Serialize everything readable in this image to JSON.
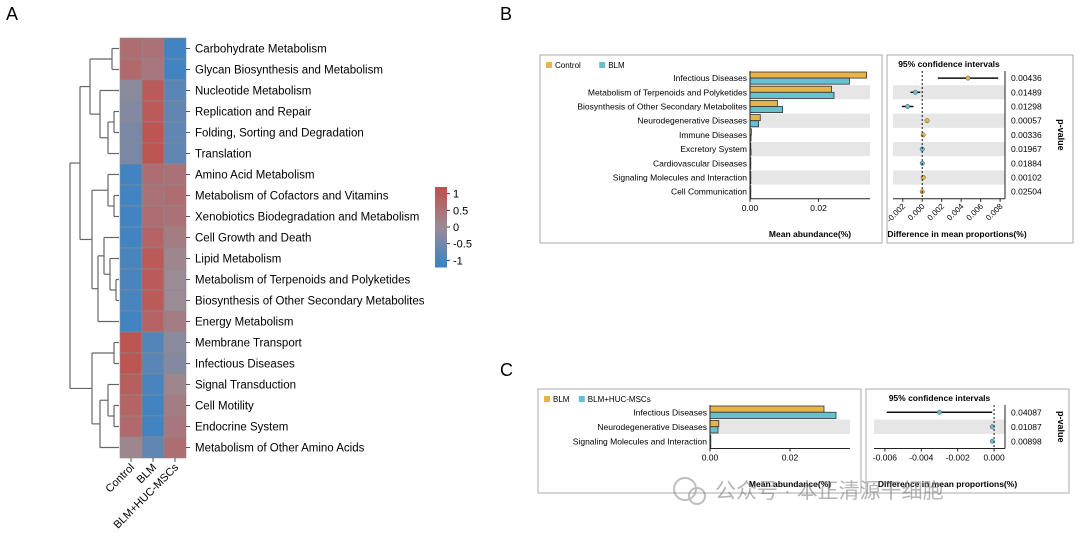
{
  "panel_labels": {
    "a": "A",
    "b": "B",
    "c": "C"
  },
  "watermark": "公众号 · 本正清源干细胞",
  "chart_data": [
    {
      "type": "heatmap",
      "panel": "A",
      "columns": [
        "Control",
        "BLM",
        "BLM+HUC-MSCs"
      ],
      "rows": [
        "Carbohydrate Metabolism",
        "Glycan Biosynthesis and Metabolism",
        "Nucleotide Metabolism",
        "Replication and Repair",
        "Folding, Sorting and Degradation",
        "Translation",
        "Amino Acid Metabolism",
        "Metabolism of Cofactors and Vitamins",
        "Xenobiotics Biodegradation and Metabolism",
        "Cell Growth and Death",
        "Lipid Metabolism",
        "Metabolism of Terpenoids and Polyketides",
        "Biosynthesis of Other Secondary Metabolites",
        "Energy Metabolism",
        "Membrane Transport",
        "Infectious Diseases",
        "Signal Transduction",
        "Cell Motility",
        "Endocrine System",
        "Metabolism of Other Amino Acids"
      ],
      "values": [
        [
          0.6,
          0.5,
          -1.1
        ],
        [
          0.7,
          0.4,
          -1.1
        ],
        [
          -0.2,
          1.0,
          -0.8
        ],
        [
          -0.3,
          1.0,
          -0.7
        ],
        [
          -0.4,
          1.1,
          -0.7
        ],
        [
          -0.4,
          1.1,
          -0.7
        ],
        [
          -1.1,
          0.6,
          0.5
        ],
        [
          -1.1,
          0.5,
          0.6
        ],
        [
          -1.1,
          0.6,
          0.5
        ],
        [
          -1.1,
          0.8,
          0.3
        ],
        [
          -1.0,
          1.0,
          0.1
        ],
        [
          -1.0,
          1.0,
          0.0
        ],
        [
          -1.0,
          1.0,
          0.0
        ],
        [
          -1.1,
          0.8,
          0.3
        ],
        [
          1.1,
          -0.9,
          -0.2
        ],
        [
          1.1,
          -0.8,
          -0.3
        ],
        [
          0.9,
          -1.0,
          0.1
        ],
        [
          0.8,
          -1.1,
          0.3
        ],
        [
          0.7,
          -1.1,
          0.4
        ],
        [
          0.1,
          -0.7,
          0.6
        ]
      ],
      "legend": {
        "ticks": [
          "1",
          "0.5",
          "0",
          "-0.5",
          "-1"
        ],
        "ticks_num": [
          1,
          0.5,
          0,
          -0.5,
          -1
        ]
      },
      "colors": {
        "high": "#c0504d",
        "mid": "#9b8b95",
        "low": "#3a83c6"
      }
    },
    {
      "type": "bar",
      "panel": "B",
      "series": [
        {
          "name": "Control",
          "color": "#e8b34a",
          "values": [
            0.034,
            0.0238,
            0.008,
            0.003,
            0.0004,
            0.0002,
            0.0002,
            0.0001,
            0.0001
          ]
        },
        {
          "name": "BLM",
          "color": "#68bfd0",
          "values": [
            0.029,
            0.0245,
            0.0095,
            0.0025,
            0.0003,
            0.0003,
            0.0002,
            0.0001,
            0.0001
          ]
        }
      ],
      "categories": [
        "Infectious Diseases",
        "Metabolism of Terpenoids and Polyketides",
        "Biosynthesis of Other Secondary Metabolites",
        "Neurodegenerative Diseases",
        "Immune Diseases",
        "Excretory System",
        "Cardiovascular Diseases",
        "Signaling Molecules and Interaction",
        "Cell Communication"
      ],
      "xlabel": "Mean abundance(%)",
      "xlim": [
        0,
        0.035
      ],
      "xticks": [
        "0.00",
        "0.02"
      ],
      "xticks_num": [
        0,
        0.02
      ],
      "ci_title": "95% confidence intervals",
      "ci_xlabel": "Difference in mean proportions(%)",
      "ci_xlim": [
        -0.003,
        0.0085
      ],
      "ci_xticks": [
        "-0.002",
        "0.000",
        "0.002",
        "0.004",
        "0.006",
        "0.008"
      ],
      "ci_xticks_num": [
        -0.002,
        0,
        0.002,
        0.004,
        0.006,
        0.008
      ],
      "ci": [
        {
          "est": 0.0047,
          "lo": 0.0016,
          "hi": 0.0078,
          "color": "#e8b34a"
        },
        {
          "est": -0.0007,
          "lo": -0.0012,
          "hi": -0.0002,
          "color": "#68bfd0"
        },
        {
          "est": -0.0015,
          "lo": -0.0021,
          "hi": -0.0009,
          "color": "#68bfd0"
        },
        {
          "est": 0.0005,
          "lo": 0.0003,
          "hi": 0.0007,
          "color": "#e8b34a"
        },
        {
          "est": 0.0001,
          "lo": 0.0,
          "hi": 0.0002,
          "color": "#e8b34a"
        },
        {
          "est": 0.0,
          "lo": -0.0001,
          "hi": 0.0001,
          "color": "#68bfd0"
        },
        {
          "est": 0.0,
          "lo": -0.0001,
          "hi": 0.0001,
          "color": "#68bfd0"
        },
        {
          "est": 0.0001,
          "lo": 0.0,
          "hi": 0.0002,
          "color": "#e8b34a"
        },
        {
          "est": 0.0,
          "lo": -0.0001,
          "hi": 0.0001,
          "color": "#e8b34a"
        }
      ],
      "pvalues": [
        "0.00436",
        "0.01489",
        "0.01298",
        "0.00057",
        "0.00336",
        "0.01967",
        "0.01884",
        "0.00102",
        "0.02504"
      ],
      "pvalue_label": "p-value"
    },
    {
      "type": "bar",
      "panel": "C",
      "series": [
        {
          "name": "BLM",
          "color": "#e8b34a",
          "values": [
            0.0285,
            0.0022,
            0.0002
          ]
        },
        {
          "name": "BLM+HUC-MSCs",
          "color": "#68bfd0",
          "values": [
            0.0315,
            0.002,
            0.0001
          ]
        }
      ],
      "categories": [
        "Infectious Diseases",
        "Neurodegenerative Diseases",
        "Signaling Molecules and Interaction"
      ],
      "xlabel": "Mean abundance(%)",
      "xlim": [
        0,
        0.035
      ],
      "xticks": [
        "0.00",
        "0.02"
      ],
      "xticks_num": [
        0,
        0.02
      ],
      "ci_title": "95% confidence intervals",
      "ci_xlabel": "Difference in mean proportions(%)",
      "ci_xlim": [
        -0.0066,
        0.0006
      ],
      "ci_xticks": [
        "-0.006",
        "-0.004",
        "-0.002",
        "0.000"
      ],
      "ci_xticks_num": [
        -0.006,
        -0.004,
        -0.002,
        0
      ],
      "ci": [
        {
          "est": -0.003,
          "lo": -0.0059,
          "hi": -0.0001,
          "color": "#68bfd0"
        },
        {
          "est": -0.0001,
          "lo": -0.0002,
          "hi": 0.0,
          "color": "#68bfd0"
        },
        {
          "est": -0.0001,
          "lo": -0.0002,
          "hi": 0.0,
          "color": "#68bfd0"
        }
      ],
      "pvalues": [
        "0.04087",
        "0.01087",
        "0.00898"
      ],
      "pvalue_label": "p-value"
    }
  ]
}
